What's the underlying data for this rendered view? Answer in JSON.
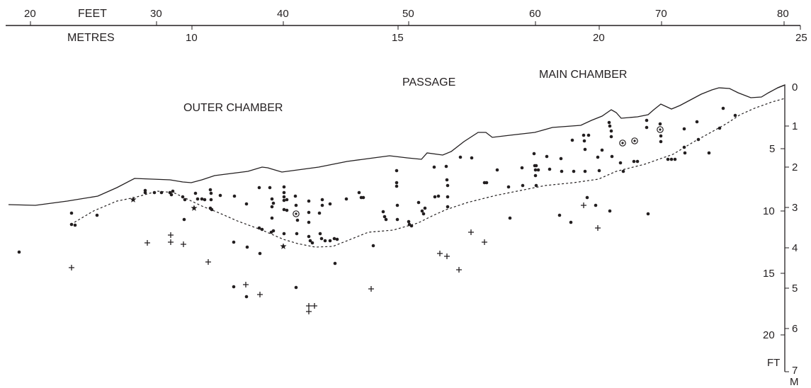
{
  "colors": {
    "ink": "#231f20",
    "background": "#ffffff"
  },
  "top_scale": {
    "feet_label": "FEET",
    "metres_label": "METRES",
    "feet_ticks": [
      "20",
      "30",
      "40",
      "50",
      "60",
      "70",
      "80"
    ],
    "metre_ticks": [
      "10",
      "15",
      "20",
      "25"
    ]
  },
  "areas": {
    "outer": "OUTER CHAMBER",
    "passage": "PASSAGE",
    "main": "MAIN CHAMBER"
  },
  "depth_scale": {
    "feet_ticks": [
      "5",
      "10",
      "15",
      "20"
    ],
    "metre_ticks": [
      "0",
      "1",
      "2",
      "3",
      "4",
      "5",
      "6",
      "7"
    ],
    "ft_label": "FT",
    "m_label": "M"
  },
  "legend_symbols": {
    "dot": "filled-dot",
    "cross": "plus-sign",
    "star": "star",
    "circled": "circled-dot"
  }
}
